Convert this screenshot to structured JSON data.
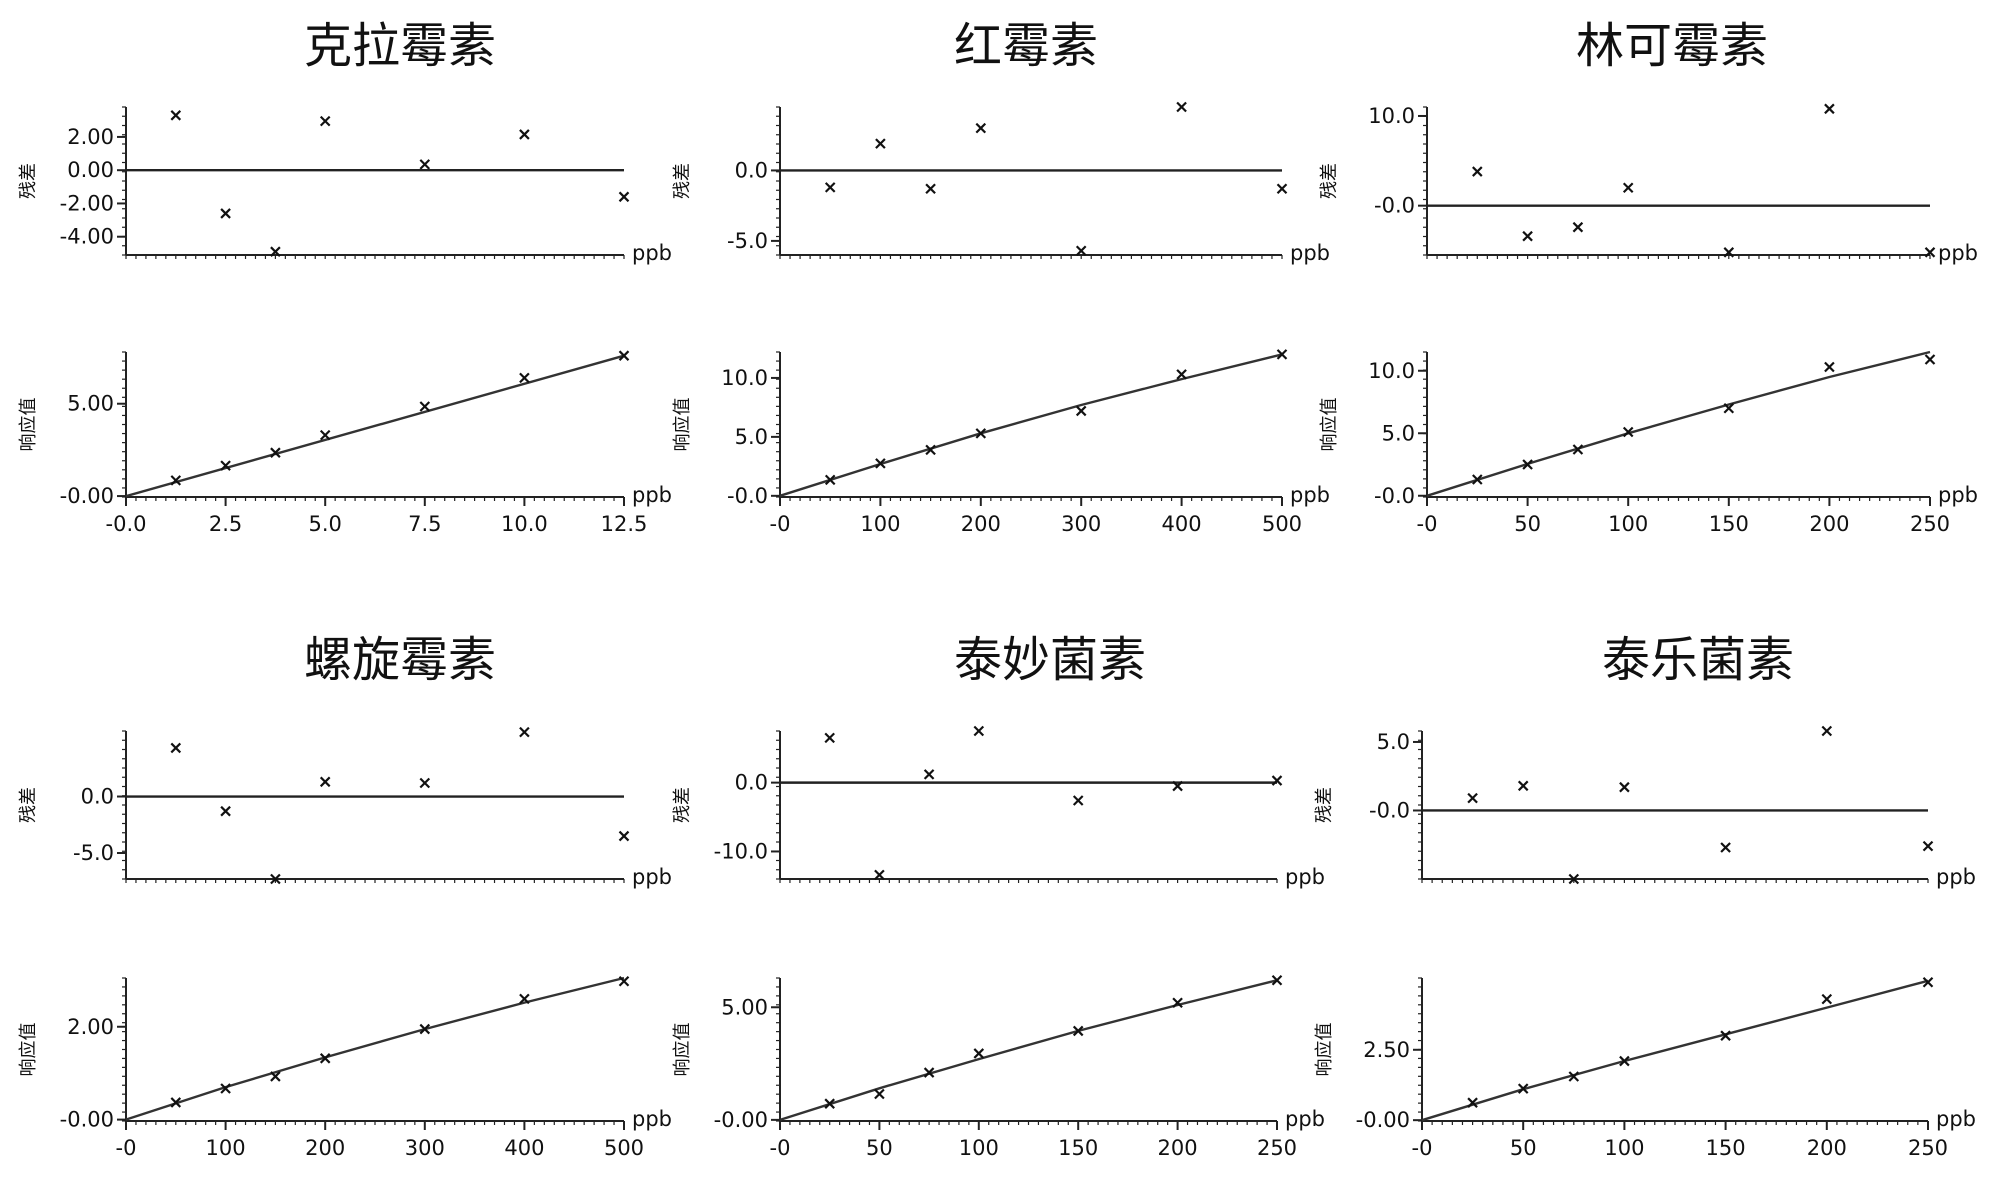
{
  "chart_data": [
    {
      "type": "scatter",
      "title": "克拉霉素",
      "unit": "ppb",
      "residual": {
        "ylabel": "残差",
        "ylim": [
          -5.1,
          3.8
        ],
        "yticks": [
          2.0,
          0.0,
          -2.0,
          -4.0
        ],
        "ytick_labels": [
          "2.00",
          "0.00",
          "-2.00",
          "-4.00"
        ],
        "x": [
          1.25,
          2.5,
          3.75,
          5.0,
          7.5,
          10.0,
          12.5
        ],
        "y": [
          3.3,
          -2.6,
          -4.9,
          2.95,
          0.35,
          2.15,
          -1.6
        ]
      },
      "response": {
        "ylabel": "响应值",
        "ylim": [
          -0.05,
          7.8
        ],
        "yticks": [
          5.0,
          0.0
        ],
        "ytick_labels": [
          "5.00",
          "-0.00"
        ],
        "xlim": [
          0,
          12.5
        ],
        "xticks": [
          0,
          2.5,
          5.0,
          7.5,
          10.0,
          12.5
        ],
        "xtick_labels": [
          "-0.0",
          "2.5",
          "5.0",
          "7.5",
          "10.0",
          "12.5"
        ],
        "x": [
          1.25,
          2.5,
          3.75,
          5.0,
          7.5,
          10.0,
          12.5
        ],
        "y": [
          0.85,
          1.65,
          2.35,
          3.3,
          4.85,
          6.4,
          7.6
        ],
        "fit_x": [
          0,
          12.5
        ],
        "fit_y": [
          0,
          7.6
        ]
      }
    },
    {
      "type": "scatter",
      "title": "红霉素",
      "unit": "ppb",
      "residual": {
        "ylabel": "残差",
        "ylim": [
          -6.0,
          4.5
        ],
        "yticks": [
          0.0,
          -5.0
        ],
        "ytick_labels": [
          "0.0",
          "-5.0"
        ],
        "x": [
          50,
          100,
          150,
          200,
          300,
          400,
          500
        ],
        "y": [
          -1.2,
          1.9,
          -1.3,
          3.0,
          -5.7,
          4.5,
          -1.3
        ]
      },
      "response": {
        "ylabel": "响应值",
        "ylim": [
          -0.1,
          12.2
        ],
        "yticks": [
          10.0,
          5.0,
          0.0
        ],
        "ytick_labels": [
          "10.0",
          "5.0",
          "-0.0"
        ],
        "xlim": [
          0,
          500
        ],
        "xticks": [
          0,
          100,
          200,
          300,
          400,
          500
        ],
        "xtick_labels": [
          "-0",
          "100",
          "200",
          "300",
          "400",
          "500"
        ],
        "x": [
          50,
          100,
          150,
          200,
          300,
          400,
          500
        ],
        "y": [
          1.35,
          2.75,
          3.9,
          5.3,
          7.2,
          10.3,
          12.0
        ],
        "fit_x": [
          0,
          100,
          200,
          300,
          400,
          500
        ],
        "fit_y": [
          0,
          2.7,
          5.3,
          7.7,
          9.9,
          12.0
        ]
      }
    },
    {
      "type": "scatter",
      "title": "林可霉素",
      "unit": "ppb",
      "residual": {
        "ylabel": "残差",
        "ylim": [
          -5.5,
          11.0
        ],
        "yticks": [
          10.0,
          0.0
        ],
        "ytick_labels": [
          "10.0",
          "-0.0"
        ],
        "x": [
          25,
          50,
          75,
          100,
          150,
          200,
          250
        ],
        "y": [
          3.8,
          -3.4,
          -2.4,
          2.0,
          -5.2,
          10.8,
          -5.2
        ]
      },
      "response": {
        "ylabel": "响应值",
        "ylim": [
          -0.1,
          11.5
        ],
        "yticks": [
          10.0,
          5.0,
          0.0
        ],
        "ytick_labels": [
          "10.0",
          "5.0",
          "-0.0"
        ],
        "xlim": [
          0,
          250
        ],
        "xticks": [
          0,
          50,
          100,
          150,
          200,
          250
        ],
        "xtick_labels": [
          "-0",
          "50",
          "100",
          "150",
          "200",
          "250"
        ],
        "x": [
          25,
          50,
          75,
          100,
          150,
          200,
          250
        ],
        "y": [
          1.3,
          2.5,
          3.7,
          5.1,
          7.0,
          10.3,
          10.9
        ],
        "fit_x": [
          0,
          50,
          100,
          150,
          200,
          250
        ],
        "fit_y": [
          0,
          2.55,
          5.0,
          7.3,
          9.5,
          11.5
        ]
      }
    },
    {
      "type": "scatter",
      "title": "螺旋霉素",
      "unit": "ppb",
      "residual": {
        "ylabel": "残差",
        "ylim": [
          -7.3,
          5.8
        ],
        "yticks": [
          0.0,
          -5.0
        ],
        "ytick_labels": [
          "0.0",
          "-5.0"
        ],
        "x": [
          50,
          100,
          150,
          200,
          300,
          400,
          500
        ],
        "y": [
          4.3,
          -1.3,
          -7.3,
          1.3,
          1.2,
          5.7,
          -3.5
        ]
      },
      "response": {
        "ylabel": "响应值",
        "ylim": [
          -0.03,
          3.05
        ],
        "yticks": [
          2.0,
          0.0
        ],
        "ytick_labels": [
          "2.00",
          "-0.00"
        ],
        "xlim": [
          0,
          500
        ],
        "xticks": [
          0,
          100,
          200,
          300,
          400,
          500
        ],
        "xtick_labels": [
          "-0",
          "100",
          "200",
          "300",
          "400",
          "500"
        ],
        "x": [
          50,
          100,
          150,
          200,
          300,
          400,
          500
        ],
        "y": [
          0.37,
          0.67,
          0.93,
          1.32,
          1.95,
          2.6,
          2.98
        ],
        "fit_x": [
          0,
          100,
          200,
          300,
          400,
          500
        ],
        "fit_y": [
          0,
          0.7,
          1.34,
          1.95,
          2.52,
          3.05
        ]
      }
    },
    {
      "type": "scatter",
      "title": "泰妙菌素",
      "unit": "ppb",
      "residual": {
        "ylabel": "残差",
        "ylim": [
          -14.0,
          7.5
        ],
        "yticks": [
          0.0,
          -10.0
        ],
        "ytick_labels": [
          "0.0",
          "-10.0"
        ],
        "x": [
          25,
          50,
          75,
          100,
          150,
          200,
          250
        ],
        "y": [
          6.5,
          -13.4,
          1.2,
          8.2,
          -2.6,
          -0.5,
          0.3
        ]
      },
      "response": {
        "ylabel": "响应值",
        "ylim": [
          -0.05,
          6.3
        ],
        "yticks": [
          5.0,
          0.0
        ],
        "ytick_labels": [
          "5.00",
          "-0.00"
        ],
        "xlim": [
          0,
          250
        ],
        "xticks": [
          0,
          50,
          100,
          150,
          200,
          250
        ],
        "xtick_labels": [
          "-0",
          "50",
          "100",
          "150",
          "200",
          "250"
        ],
        "x": [
          25,
          50,
          75,
          100,
          150,
          200,
          250
        ],
        "y": [
          0.72,
          1.15,
          2.1,
          2.95,
          3.95,
          5.2,
          6.2
        ],
        "fit_x": [
          0,
          50,
          100,
          150,
          200,
          250
        ],
        "fit_y": [
          0,
          1.4,
          2.7,
          3.95,
          5.1,
          6.2
        ]
      }
    },
    {
      "type": "scatter",
      "title": "泰乐菌素",
      "unit": "ppb",
      "residual": {
        "ylabel": "残差",
        "ylim": [
          -5.0,
          5.8
        ],
        "yticks": [
          5.0,
          0.0
        ],
        "ytick_labels": [
          "5.0",
          "-0.0"
        ],
        "x": [
          25,
          50,
          75,
          100,
          150,
          200,
          250
        ],
        "y": [
          0.9,
          1.8,
          -5.0,
          1.7,
          -2.7,
          5.8,
          -2.6
        ]
      },
      "response": {
        "ylabel": "响应值",
        "ylim": [
          -0.03,
          5.05
        ],
        "yticks": [
          2.5,
          0.0
        ],
        "ytick_labels": [
          "2.50",
          "-0.00"
        ],
        "xlim": [
          0,
          250
        ],
        "xticks": [
          0,
          50,
          100,
          150,
          200,
          250
        ],
        "xtick_labels": [
          "-0",
          "50",
          "100",
          "150",
          "200",
          "250"
        ],
        "x": [
          25,
          50,
          75,
          100,
          150,
          200,
          250
        ],
        "y": [
          0.62,
          1.12,
          1.55,
          2.1,
          3.0,
          4.3,
          4.9
        ],
        "fit_x": [
          0,
          50,
          100,
          150,
          200,
          250
        ],
        "fit_y": [
          0,
          1.1,
          2.1,
          3.05,
          4.0,
          4.95
        ]
      }
    }
  ]
}
